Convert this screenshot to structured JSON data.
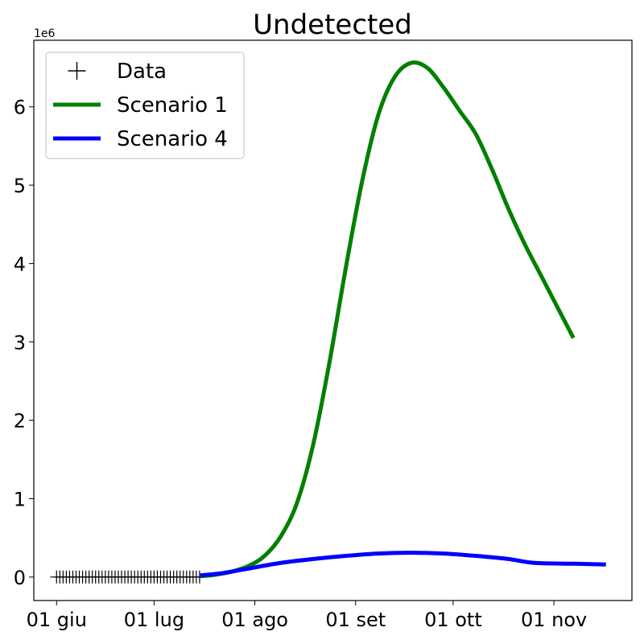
{
  "chart_data": {
    "type": "line",
    "title": "Undetected",
    "y_offset_label": "1e6",
    "ylim": [
      -0.3,
      6.85
    ],
    "xlim": [
      "2020-05-25",
      "2020-11-25"
    ],
    "x_ticks": [
      {
        "date": "2020-06-01",
        "label": "01 giu"
      },
      {
        "date": "2020-07-01",
        "label": "01 lug"
      },
      {
        "date": "2020-08-01",
        "label": "01 ago"
      },
      {
        "date": "2020-09-01",
        "label": "01 set"
      },
      {
        "date": "2020-10-01",
        "label": "01 ott"
      },
      {
        "date": "2020-11-01",
        "label": "01 nov"
      }
    ],
    "y_ticks": [
      {
        "value": 0,
        "label": "0"
      },
      {
        "value": 1,
        "label": "1"
      },
      {
        "value": 2,
        "label": "2"
      },
      {
        "value": 3,
        "label": "3"
      },
      {
        "value": 4,
        "label": "4"
      },
      {
        "value": 5,
        "label": "5"
      },
      {
        "value": 6,
        "label": "6"
      }
    ],
    "legend": {
      "position": "upper-left",
      "entries": [
        "Data",
        "Scenario 1",
        "Scenario 4"
      ]
    },
    "series": [
      {
        "name": "Data",
        "kind": "marker",
        "marker": "+",
        "color": "#000000",
        "x_start": "2020-06-01",
        "x_end": "2020-07-15",
        "count": 45,
        "value": 0.0
      },
      {
        "name": "Scenario 1",
        "kind": "line",
        "color": "#008000",
        "points": [
          [
            "2020-07-15",
            0.01
          ],
          [
            "2020-07-20",
            0.03
          ],
          [
            "2020-07-25",
            0.07
          ],
          [
            "2020-07-30",
            0.14
          ],
          [
            "2020-08-04",
            0.27
          ],
          [
            "2020-08-09",
            0.52
          ],
          [
            "2020-08-14",
            0.95
          ],
          [
            "2020-08-19",
            1.7
          ],
          [
            "2020-08-24",
            2.75
          ],
          [
            "2020-08-29",
            3.95
          ],
          [
            "2020-09-03",
            5.05
          ],
          [
            "2020-09-08",
            5.9
          ],
          [
            "2020-09-13",
            6.38
          ],
          [
            "2020-09-18",
            6.56
          ],
          [
            "2020-09-23",
            6.5
          ],
          [
            "2020-09-28",
            6.25
          ],
          [
            "2020-10-03",
            5.95
          ],
          [
            "2020-10-08",
            5.65
          ],
          [
            "2020-10-13",
            5.2
          ],
          [
            "2020-10-18",
            4.7
          ],
          [
            "2020-10-23",
            4.25
          ],
          [
            "2020-10-28",
            3.85
          ],
          [
            "2020-11-02",
            3.45
          ],
          [
            "2020-11-07",
            3.05
          ]
        ]
      },
      {
        "name": "Scenario 4",
        "kind": "line",
        "color": "#0000ff",
        "points": [
          [
            "2020-07-15",
            0.02
          ],
          [
            "2020-07-22",
            0.05
          ],
          [
            "2020-07-29",
            0.1
          ],
          [
            "2020-08-09",
            0.18
          ],
          [
            "2020-08-19",
            0.23
          ],
          [
            "2020-08-29",
            0.27
          ],
          [
            "2020-09-08",
            0.3
          ],
          [
            "2020-09-18",
            0.31
          ],
          [
            "2020-09-28",
            0.3
          ],
          [
            "2020-10-08",
            0.27
          ],
          [
            "2020-10-18",
            0.23
          ],
          [
            "2020-10-26",
            0.18
          ],
          [
            "2020-11-07",
            0.17
          ],
          [
            "2020-11-17",
            0.16
          ]
        ]
      }
    ]
  }
}
